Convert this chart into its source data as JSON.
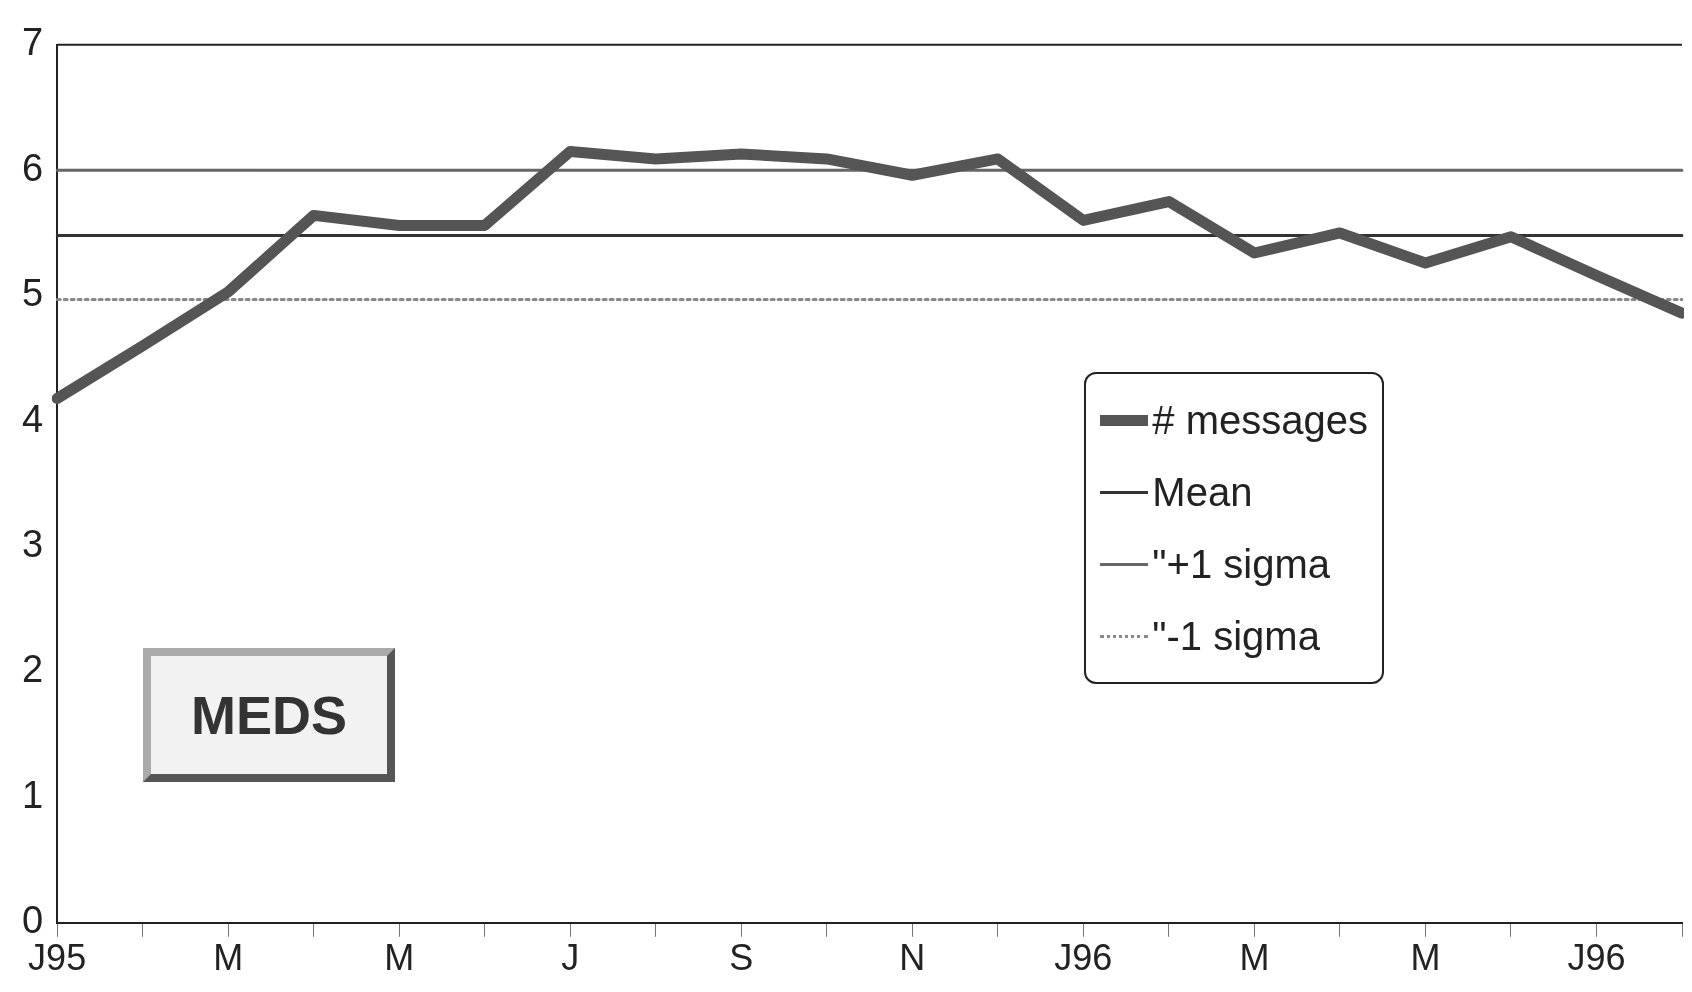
{
  "chart_data": {
    "type": "line",
    "categories": [
      "J95",
      null,
      "M",
      null,
      "M",
      null,
      "J",
      null,
      "S",
      null,
      "N",
      null,
      "J96",
      null,
      "M",
      null,
      "M",
      null,
      "J96",
      null
    ],
    "series": [
      {
        "name": "# messages",
        "color": "#555555",
        "values": [
          4.18,
          4.6,
          5.03,
          5.64,
          5.56,
          5.56,
          6.15,
          6.09,
          6.13,
          6.09,
          5.96,
          6.09,
          5.6,
          5.75,
          5.34,
          5.5,
          5.26,
          5.47,
          5.16,
          4.86
        ]
      },
      {
        "name": "Mean",
        "color": "#333333",
        "line_style": "solid",
        "values": [
          5.48,
          5.48,
          5.48,
          5.48,
          5.48,
          5.48,
          5.48,
          5.48,
          5.48,
          5.48,
          5.48,
          5.48,
          5.48,
          5.48,
          5.48,
          5.48,
          5.48,
          5.48,
          5.48,
          5.48
        ]
      },
      {
        "name": "\"+1 sigma",
        "color": "#666666",
        "line_style": "solid",
        "values": [
          6.0,
          6.0,
          6.0,
          6.0,
          6.0,
          6.0,
          6.0,
          6.0,
          6.0,
          6.0,
          6.0,
          6.0,
          6.0,
          6.0,
          6.0,
          6.0,
          6.0,
          6.0,
          6.0,
          6.0
        ]
      },
      {
        "name": "\"-1 sigma",
        "color": "#888888",
        "line_style": "dotted",
        "values": [
          4.97,
          4.97,
          4.97,
          4.97,
          4.97,
          4.97,
          4.97,
          4.97,
          4.97,
          4.97,
          4.97,
          4.97,
          4.97,
          4.97,
          4.97,
          4.97,
          4.97,
          4.97,
          4.97,
          4.97
        ]
      }
    ],
    "ylim": [
      0,
      7
    ],
    "yticks": [
      0,
      1,
      2,
      3,
      4,
      5,
      6,
      7
    ],
    "grid": false,
    "legend": "bottom right",
    "marker": "none",
    "annotations": [
      "MEDS"
    ]
  }
}
